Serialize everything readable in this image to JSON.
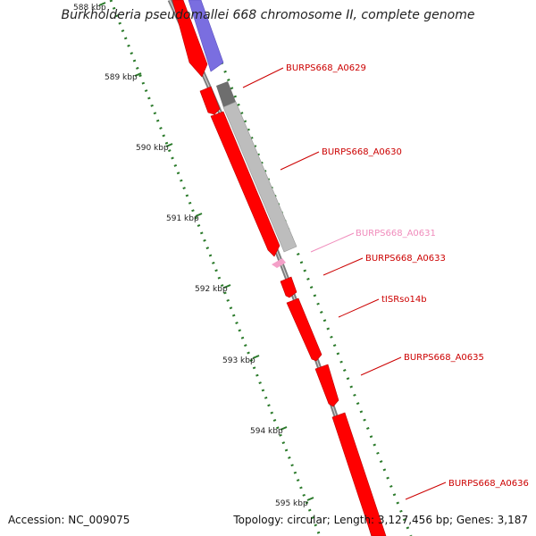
{
  "title": "Burkholderia pseudomallei 668 chromosome II, complete genome",
  "accession": "Accession: NC_009075",
  "summary": "Topology: circular; Length: 3,127,456 bp; Genes: 3,187",
  "colors": {
    "gene": "#ff0000",
    "gene_light": "#ff6a6a",
    "blue": "#7a6ee0",
    "gray": "#b8b8b8",
    "dark_gray": "#6e6e6e",
    "pink": "#f4a0c8",
    "tick": "#2a7a2a",
    "backbone": "#7c7c7c"
  },
  "ticks": [
    {
      "label": "588 kbp"
    },
    {
      "label": "589 kbp"
    },
    {
      "label": "590 kbp"
    },
    {
      "label": "591 kbp"
    },
    {
      "label": "592 kbp"
    },
    {
      "label": "593 kbp"
    },
    {
      "label": "594 kbp"
    },
    {
      "label": "595 kbp"
    }
  ],
  "genes": [
    {
      "label": "BURPS668_A0629",
      "color": "#cc0000"
    },
    {
      "label": "BURPS668_A0630",
      "color": "#cc0000"
    },
    {
      "label": "BURPS668_A0631",
      "color": "#f08cbc"
    },
    {
      "label": "BURPS668_A0633",
      "color": "#cc0000"
    },
    {
      "label": "tISRso14b",
      "color": "#cc0000"
    },
    {
      "label": "BURPS668_A0635",
      "color": "#cc0000"
    },
    {
      "label": "BURPS668_A0636",
      "color": "#cc0000"
    }
  ]
}
